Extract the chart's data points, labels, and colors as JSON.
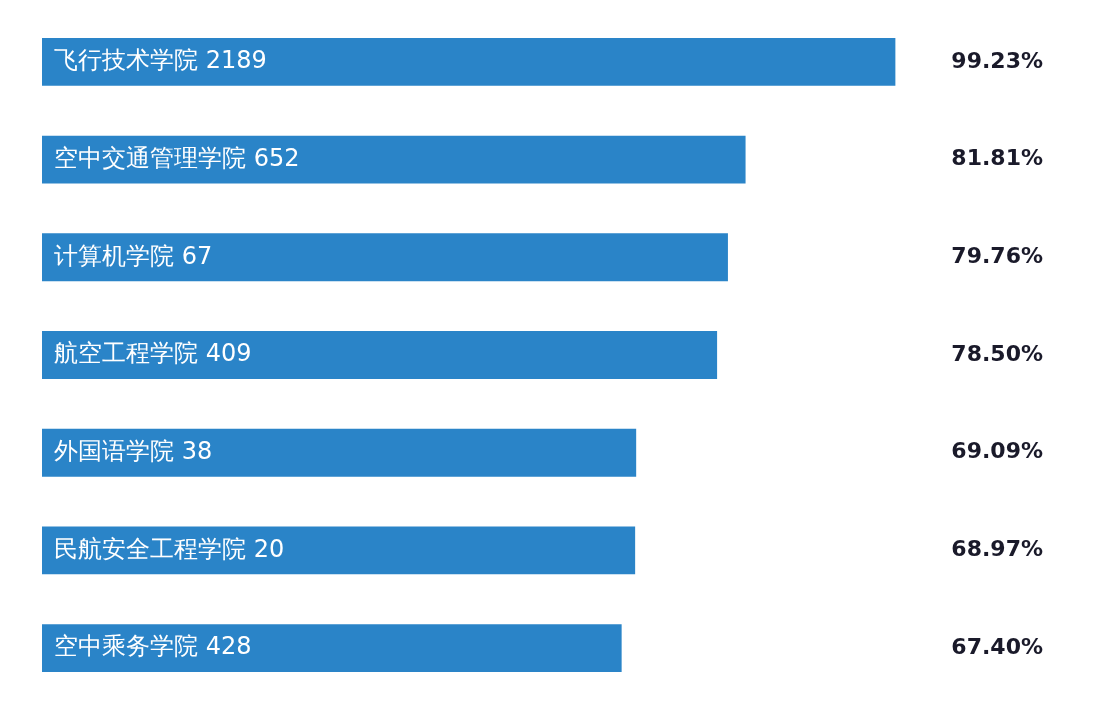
{
  "chart_data": {
    "type": "bar",
    "orientation": "horizontal",
    "categories": [
      "飞行技术学院 2189",
      "空中交通管理学院 652",
      "计算机学院 67",
      "航空工程学院 409",
      "外国语学院 38",
      "民航安全工程学院 20",
      "空中乘务学院 428"
    ],
    "values": [
      99.23,
      81.81,
      79.76,
      78.5,
      69.09,
      68.97,
      67.4
    ],
    "value_labels": [
      "99.23%",
      "81.81%",
      "79.76%",
      "78.50%",
      "69.09%",
      "68.97%",
      "67.40%"
    ],
    "color": "#2a84c8",
    "tick_labels": false,
    "legend": false
  }
}
